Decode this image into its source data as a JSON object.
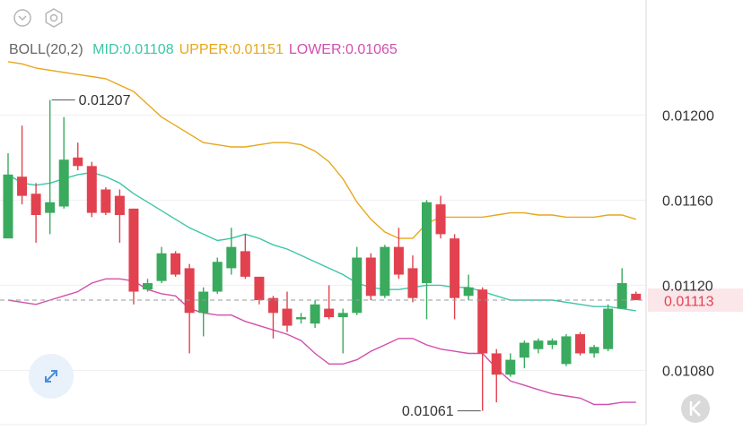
{
  "chart_data": {
    "type": "candlestick",
    "indicator": "BOLL(20,2)",
    "up_color": "#3aaa5e",
    "down_color": "#e2424f",
    "open": [
      0.01142,
      0.01171,
      0.01163,
      0.01154,
      0.01157,
      0.0118,
      0.01176,
      0.01165,
      0.01162,
      0.01156,
      0.01118,
      0.01122,
      0.01135,
      0.01128,
      0.01107,
      0.01117,
      0.01128,
      0.01136,
      0.01124,
      0.01114,
      0.01109,
      0.01104,
      0.01102,
      0.01109,
      0.01105,
      0.01107,
      0.01133,
      0.01115,
      0.01138,
      0.01128,
      0.01121,
      0.01158,
      0.01142,
      0.01115,
      0.01118,
      0.01088,
      0.01078,
      0.01086,
      0.0109,
      0.01092,
      0.01083,
      0.01097,
      0.01088,
      0.0109,
      0.01109,
      0.01116
    ],
    "high": [
      0.01182,
      0.01195,
      0.01168,
      0.01207,
      0.01199,
      0.01187,
      0.01178,
      0.01166,
      0.01165,
      0.01156,
      0.01123,
      0.01138,
      0.01136,
      0.0113,
      0.01119,
      0.01133,
      0.01147,
      0.01144,
      0.01124,
      0.01115,
      0.01117,
      0.01107,
      0.01113,
      0.0112,
      0.01109,
      0.01138,
      0.01135,
      0.01139,
      0.01147,
      0.01134,
      0.0116,
      0.01162,
      0.01144,
      0.01125,
      0.01119,
      0.0109,
      0.01088,
      0.01094,
      0.01095,
      0.01095,
      0.01097,
      0.01098,
      0.01092,
      0.01111,
      0.01128,
      0.01117
    ],
    "low": [
      0.01142,
      0.01158,
      0.0114,
      0.01144,
      0.01156,
      0.01174,
      0.01152,
      0.01153,
      0.0114,
      0.01111,
      0.01117,
      0.01121,
      0.01124,
      0.01088,
      0.01096,
      0.01116,
      0.01125,
      0.01123,
      0.01111,
      0.01095,
      0.01098,
      0.01102,
      0.011,
      0.01104,
      0.01088,
      0.01106,
      0.01113,
      0.01114,
      0.01123,
      0.01112,
      0.01104,
      0.01142,
      0.01104,
      0.01113,
      0.01061,
      0.01065,
      0.01077,
      0.01081,
      0.01088,
      0.0109,
      0.01082,
      0.01087,
      0.01086,
      0.01089,
      0.01109,
      0.01113
    ],
    "close": [
      0.01172,
      0.01162,
      0.01153,
      0.01159,
      0.01179,
      0.01176,
      0.01154,
      0.01154,
      0.01153,
      0.01117,
      0.01121,
      0.01135,
      0.01125,
      0.01107,
      0.01117,
      0.01131,
      0.01138,
      0.01124,
      0.01113,
      0.01107,
      0.01101,
      0.01105,
      0.01111,
      0.01105,
      0.01107,
      0.01133,
      0.01115,
      0.01138,
      0.01125,
      0.01114,
      0.01159,
      0.01144,
      0.01114,
      0.01119,
      0.01088,
      0.01078,
      0.01085,
      0.01093,
      0.01094,
      0.01094,
      0.01096,
      0.01088,
      0.01091,
      0.01109,
      0.01121,
      0.01113
    ],
    "bands": [
      {
        "name": "MID:",
        "color": "#3cc6a6",
        "last": 0.01108,
        "values": [
          0.01172,
          0.01168,
          0.01167,
          0.01168,
          0.0117,
          0.01172,
          0.01173,
          0.01171,
          0.01168,
          0.01163,
          0.01159,
          0.01155,
          0.01151,
          0.01147,
          0.01144,
          0.01141,
          0.01142,
          0.01144,
          0.01142,
          0.01139,
          0.01137,
          0.01134,
          0.01131,
          0.01128,
          0.01125,
          0.01121,
          0.01119,
          0.01118,
          0.01118,
          0.01119,
          0.0112,
          0.0112,
          0.01119,
          0.01119,
          0.01117,
          0.01115,
          0.01113,
          0.01113,
          0.01113,
          0.01113,
          0.01112,
          0.01111,
          0.0111,
          0.0111,
          0.01109,
          0.01108
        ]
      },
      {
        "name": "UPPER:",
        "color": "#e7a71c",
        "last": 0.01151,
        "values": [
          0.01225,
          0.01224,
          0.01222,
          0.01221,
          0.0122,
          0.01219,
          0.01218,
          0.01217,
          0.01214,
          0.01211,
          0.01205,
          0.01199,
          0.01195,
          0.01191,
          0.01187,
          0.01186,
          0.01185,
          0.01185,
          0.01186,
          0.01187,
          0.01187,
          0.01186,
          0.01183,
          0.01178,
          0.0117,
          0.01159,
          0.01151,
          0.01145,
          0.01142,
          0.01142,
          0.01149,
          0.01152,
          0.01152,
          0.01152,
          0.01152,
          0.01153,
          0.01154,
          0.01154,
          0.01153,
          0.01153,
          0.01152,
          0.01152,
          0.01152,
          0.01153,
          0.01153,
          0.01151
        ]
      },
      {
        "name": "LOWER:",
        "color": "#d24fae",
        "last": 0.01065,
        "values": [
          0.01113,
          0.01112,
          0.01111,
          0.01113,
          0.01115,
          0.01117,
          0.01121,
          0.01123,
          0.01123,
          0.01122,
          0.01118,
          0.01116,
          0.01115,
          0.01109,
          0.01107,
          0.01106,
          0.01106,
          0.01103,
          0.01101,
          0.01099,
          0.01097,
          0.01094,
          0.01088,
          0.01083,
          0.01083,
          0.01085,
          0.01089,
          0.01092,
          0.01095,
          0.01095,
          0.01092,
          0.0109,
          0.01089,
          0.01088,
          0.01088,
          0.01081,
          0.01075,
          0.01073,
          0.01071,
          0.01069,
          0.01068,
          0.01067,
          0.01064,
          0.01064,
          0.01065,
          0.01065
        ]
      }
    ],
    "ylim": [
      0.01052,
      0.01254
    ],
    "yticks": [
      {
        "value": 0.012,
        "label": "0.01200"
      },
      {
        "value": 0.0116,
        "label": "0.01160"
      },
      {
        "value": 0.0112,
        "label": "0.01120"
      },
      {
        "value": 0.0108,
        "label": "0.01080"
      }
    ],
    "grid": true,
    "high_index": 3,
    "low_index": 34
  }
}
